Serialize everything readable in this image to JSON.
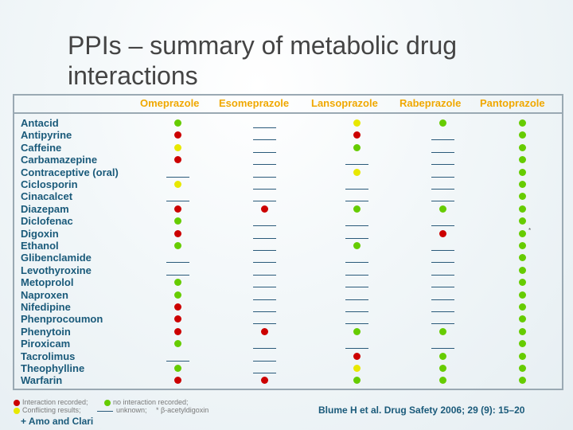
{
  "title": "PPIs – summary of metabolic drug interactions",
  "columns": [
    "Omeprazole",
    "Esomeprazole",
    "Lansoprazole",
    "Rabeprazole",
    "Pantoprazole"
  ],
  "drugs": [
    "Antacid",
    "Antipyrine",
    "Caffeine",
    "Carbamazepine",
    "Contraceptive (oral)",
    "Ciclosporin",
    "Cinacalcet",
    "Diazepam",
    "Diclofenac",
    "Digoxin",
    "Ethanol",
    "Glibenclamide",
    "Levothyroxine",
    "Metoprolol",
    "Naproxen",
    "Nifedipine",
    "Phenprocoumon",
    "Phenytoin",
    "Piroxicam",
    "Tacrolimus",
    "Theophylline",
    "Warfarin"
  ],
  "status_key": {
    "R": "interaction recorded",
    "G": "no interaction recorded",
    "Y": "conflicting results",
    "-": "unknown"
  },
  "colors": {
    "R": "#cc0000",
    "G": "#66cc00",
    "Y": "#e8e800",
    "dash": "#2a5a7a",
    "drug_text": "#1a5a7a",
    "header_text": "#f0a800"
  },
  "matrix": [
    [
      "G",
      "-",
      "Y",
      "G",
      "G"
    ],
    [
      "R",
      "-",
      "R",
      "-",
      "G"
    ],
    [
      "Y",
      "-",
      "G",
      "-",
      "G"
    ],
    [
      "R",
      "-",
      "-",
      "-",
      "G"
    ],
    [
      "-",
      "-",
      "Y",
      "-",
      "G"
    ],
    [
      "Y",
      "-",
      "-",
      "-",
      "G"
    ],
    [
      "-",
      "-",
      "-",
      "-",
      "G"
    ],
    [
      "R",
      "R",
      "G",
      "G",
      "G"
    ],
    [
      "G",
      "-",
      "-",
      "-",
      "G"
    ],
    [
      "R",
      "-",
      "-",
      "R",
      "G"
    ],
    [
      "G",
      "-",
      "G",
      "-",
      "G"
    ],
    [
      "-",
      "-",
      "-",
      "-",
      "G"
    ],
    [
      "-",
      "-",
      "-",
      "-",
      "G"
    ],
    [
      "G",
      "-",
      "-",
      "-",
      "G"
    ],
    [
      "G",
      "-",
      "-",
      "-",
      "G"
    ],
    [
      "R",
      "-",
      "-",
      "-",
      "G"
    ],
    [
      "R",
      "-",
      "-",
      "-",
      "G"
    ],
    [
      "R",
      "R",
      "G",
      "G",
      "G"
    ],
    [
      "G",
      "-",
      "-",
      "-",
      "G"
    ],
    [
      "-",
      "-",
      "R",
      "G",
      "G"
    ],
    [
      "G",
      "-",
      "Y",
      "G",
      "G"
    ],
    [
      "R",
      "R",
      "G",
      "G",
      "G"
    ]
  ],
  "footnote_star": {
    "row": 9,
    "col": 4,
    "text": "*"
  },
  "legend": {
    "line1_a": "Interaction recorded;",
    "line1_b": "no interaction recorded;",
    "line2_a": "Conflicting results;",
    "line2_b": "unknown;",
    "line2_c": "* β-acetyldigoxin"
  },
  "reference": "Blume H et al. Drug Safety 2006; 29 (9): 15–20",
  "extra_note": "+ Amo and Clari"
}
